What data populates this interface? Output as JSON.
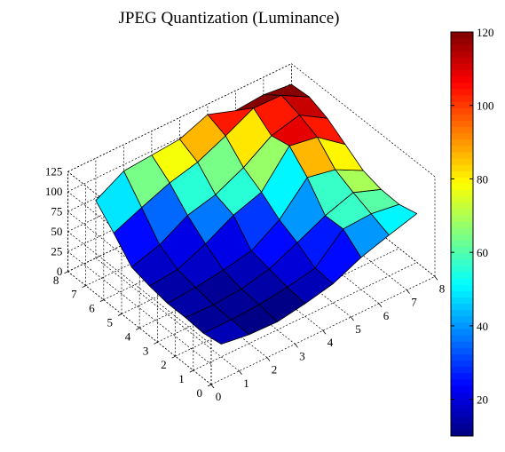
{
  "chart_data": {
    "type": "surface3d",
    "title": "JPEG Quantization (Luminance)",
    "xlabel": "",
    "ylabel": "",
    "zlabel": "",
    "x_ticks": [
      "0",
      "1",
      "2",
      "3",
      "4",
      "5",
      "6",
      "7",
      "8"
    ],
    "y_ticks": [
      "0",
      "1",
      "2",
      "3",
      "4",
      "5",
      "6",
      "7",
      "8"
    ],
    "z_ticks": [
      "0",
      "25",
      "50",
      "75",
      "100",
      "125"
    ],
    "xlim": [
      0,
      8
    ],
    "ylim": [
      0,
      8
    ],
    "zlim": [
      0,
      125
    ],
    "grid": true,
    "colormap": "jet",
    "colorbar": {
      "placement": "right",
      "range": [
        10,
        120
      ],
      "ticks": [
        "20",
        "40",
        "60",
        "80",
        "100",
        "120"
      ]
    },
    "z": [
      [
        16,
        11,
        10,
        16,
        24,
        40,
        51,
        61
      ],
      [
        12,
        12,
        14,
        19,
        26,
        58,
        60,
        55
      ],
      [
        14,
        13,
        16,
        24,
        40,
        57,
        69,
        56
      ],
      [
        14,
        17,
        22,
        29,
        51,
        87,
        80,
        62
      ],
      [
        18,
        22,
        37,
        56,
        68,
        109,
        103,
        77
      ],
      [
        24,
        35,
        55,
        64,
        81,
        104,
        113,
        92
      ],
      [
        49,
        64,
        78,
        87,
        103,
        121,
        120,
        101
      ],
      [
        72,
        92,
        95,
        98,
        112,
        100,
        103,
        99
      ]
    ]
  }
}
